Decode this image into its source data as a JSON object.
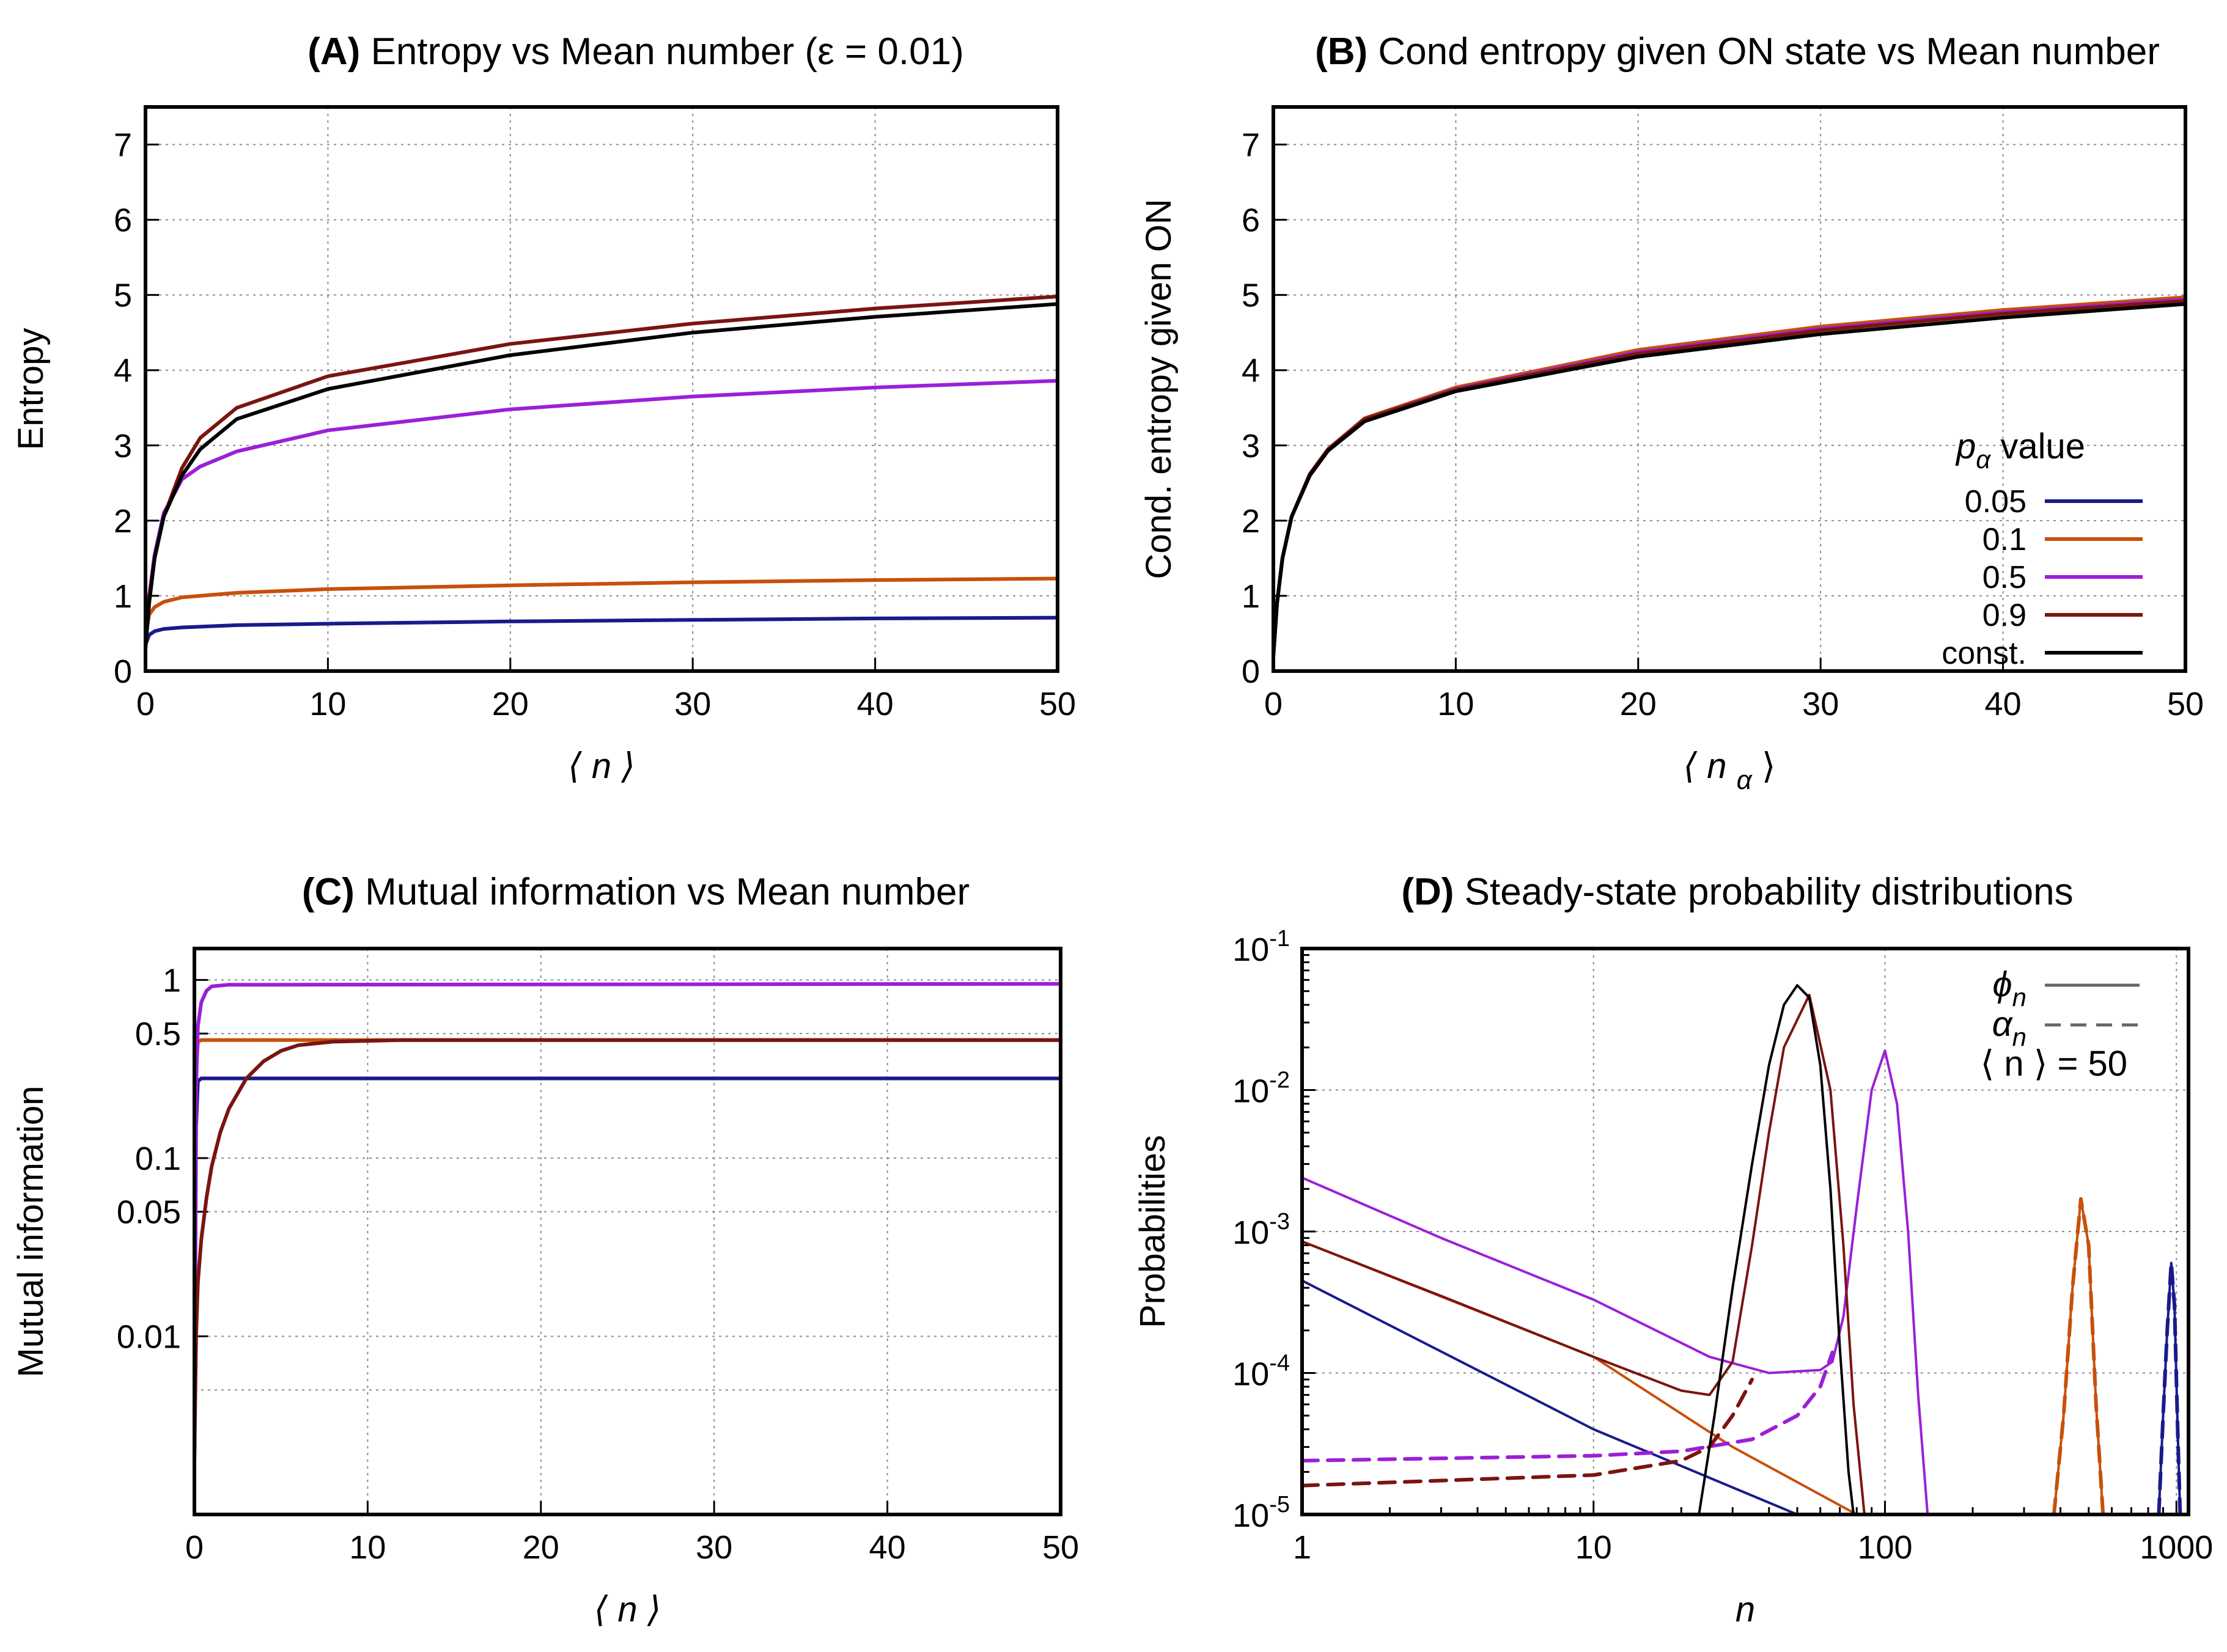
{
  "colors": {
    "0.05": "#1a1a8c",
    "0.1": "#c8500a",
    "0.5": "#9b1fd8",
    "0.9": "#7a1510",
    "const": "#000000"
  },
  "chart_data": [
    {
      "panel": "A",
      "type": "line",
      "title_letter": "(A)",
      "title_text": "Entropy vs Mean number (ε = 0.01)",
      "xlabel": "⟨ n ⟩",
      "ylabel": "Entropy",
      "xlim": [
        0,
        50
      ],
      "ylim": [
        0,
        7.5
      ],
      "xticks": [
        0,
        10,
        20,
        30,
        40,
        50
      ],
      "yticks": [
        0,
        1,
        2,
        3,
        4,
        5,
        6,
        7
      ],
      "grid": true,
      "series": [
        {
          "key": "0.05",
          "x": [
            0,
            0.2,
            0.5,
            1,
            2,
            3,
            5,
            10,
            20,
            30,
            40,
            50
          ],
          "y": [
            0.35,
            0.48,
            0.53,
            0.56,
            0.58,
            0.59,
            0.61,
            0.63,
            0.66,
            0.68,
            0.7,
            0.71
          ]
        },
        {
          "key": "0.1",
          "x": [
            0,
            0.2,
            0.5,
            1,
            2,
            3,
            5,
            10,
            20,
            30,
            40,
            50
          ],
          "y": [
            0.45,
            0.75,
            0.85,
            0.92,
            0.98,
            1.0,
            1.04,
            1.09,
            1.14,
            1.18,
            1.21,
            1.23
          ]
        },
        {
          "key": "0.5",
          "x": [
            0,
            0.2,
            0.5,
            1,
            2,
            3,
            5,
            10,
            20,
            30,
            40,
            50
          ],
          "y": [
            0.4,
            1.0,
            1.55,
            2.1,
            2.55,
            2.72,
            2.92,
            3.2,
            3.48,
            3.65,
            3.77,
            3.86
          ]
        },
        {
          "key": "0.9",
          "x": [
            0,
            0.2,
            0.5,
            1,
            2,
            3,
            5,
            10,
            20,
            30,
            40,
            50
          ],
          "y": [
            0.4,
            0.95,
            1.5,
            2.05,
            2.7,
            3.1,
            3.5,
            3.92,
            4.35,
            4.62,
            4.82,
            4.98
          ]
        },
        {
          "key": "const",
          "x": [
            0,
            0.2,
            0.5,
            1,
            2,
            3,
            5,
            10,
            20,
            30,
            40,
            50
          ],
          "y": [
            0.3,
            0.9,
            1.5,
            2.05,
            2.6,
            2.95,
            3.35,
            3.75,
            4.2,
            4.5,
            4.71,
            4.88
          ]
        }
      ]
    },
    {
      "panel": "B",
      "type": "line",
      "title_letter": "(B)",
      "title_text": "Cond entropy given ON state vs Mean number",
      "xlabel": "⟨ n",
      "xlabel_sub": "α",
      "xlabel_end": "⟩",
      "ylabel": "Cond. entropy given ON",
      "xlim": [
        0,
        50
      ],
      "ylim": [
        0,
        7.5
      ],
      "xticks": [
        0,
        10,
        20,
        30,
        40,
        50
      ],
      "yticks": [
        0,
        1,
        2,
        3,
        4,
        5,
        6,
        7
      ],
      "grid": true,
      "legend": {
        "position": "right",
        "title_sym": "p",
        "title_sub": "α",
        "title_text": " value",
        "entries": [
          {
            "key": "0.05",
            "label": "0.05"
          },
          {
            "key": "0.1",
            "label": "0.1"
          },
          {
            "key": "0.5",
            "label": "0.5"
          },
          {
            "key": "0.9",
            "label": "0.9"
          },
          {
            "key": "const",
            "label": "const."
          }
        ]
      },
      "series": [
        {
          "key": "0.05",
          "x": [
            0,
            0.2,
            0.5,
            1,
            2,
            3,
            5,
            10,
            20,
            30,
            40,
            50
          ],
          "y": [
            0.2,
            0.9,
            1.5,
            2.05,
            2.62,
            2.95,
            3.35,
            3.76,
            4.25,
            4.56,
            4.78,
            4.95
          ]
        },
        {
          "key": "0.1",
          "x": [
            0,
            0.2,
            0.5,
            1,
            2,
            3,
            5,
            10,
            20,
            30,
            40,
            50
          ],
          "y": [
            0.2,
            0.9,
            1.5,
            2.05,
            2.62,
            2.95,
            3.36,
            3.77,
            4.27,
            4.58,
            4.8,
            4.97
          ]
        },
        {
          "key": "0.5",
          "x": [
            0,
            0.2,
            0.5,
            1,
            2,
            3,
            5,
            10,
            20,
            30,
            40,
            50
          ],
          "y": [
            0.2,
            0.9,
            1.5,
            2.05,
            2.62,
            2.95,
            3.35,
            3.75,
            4.24,
            4.55,
            4.77,
            4.94
          ]
        },
        {
          "key": "0.9",
          "x": [
            0,
            0.2,
            0.5,
            1,
            2,
            3,
            5,
            10,
            20,
            30,
            40,
            50
          ],
          "y": [
            0.2,
            0.9,
            1.5,
            2.05,
            2.62,
            2.95,
            3.35,
            3.74,
            4.22,
            4.53,
            4.75,
            4.92
          ]
        },
        {
          "key": "const",
          "x": [
            0,
            0.2,
            0.5,
            1,
            2,
            3,
            5,
            10,
            20,
            30,
            40,
            50
          ],
          "y": [
            0.2,
            0.9,
            1.5,
            2.05,
            2.6,
            2.93,
            3.32,
            3.72,
            4.18,
            4.48,
            4.7,
            4.88
          ]
        }
      ]
    },
    {
      "panel": "C",
      "type": "line",
      "title_letter": "(C)",
      "title_text": "Mutual information vs Mean number",
      "xlabel": "⟨ n ⟩",
      "ylabel": "Mutual information",
      "xlim": [
        0,
        50
      ],
      "ylim": [
        0.001,
        1.5
      ],
      "yscale": "log",
      "xticks": [
        0,
        10,
        20,
        30,
        40,
        50
      ],
      "yticks": [
        0.01,
        0.05,
        0.1,
        0.5,
        1
      ],
      "ytick_labels": [
        "0.01",
        "0.05",
        "0.1",
        "0.5",
        "1"
      ],
      "ygrid": [
        0.005,
        0.01,
        0.05,
        0.1,
        0.5,
        1
      ],
      "grid": true,
      "series": [
        {
          "key": "0.05",
          "x": [
            0,
            0.1,
            0.2,
            0.4,
            1,
            5,
            50
          ],
          "y": [
            0.002,
            0.15,
            0.27,
            0.28,
            0.28,
            0.28,
            0.28
          ]
        },
        {
          "key": "0.1",
          "x": [
            0,
            0.1,
            0.2,
            0.4,
            1,
            5,
            50
          ],
          "y": [
            0.002,
            0.3,
            0.45,
            0.46,
            0.46,
            0.46,
            0.46
          ]
        },
        {
          "key": "0.5",
          "x": [
            0,
            0.1,
            0.2,
            0.4,
            0.7,
            1,
            2,
            3,
            5,
            50
          ],
          "y": [
            0.002,
            0.25,
            0.55,
            0.75,
            0.87,
            0.92,
            0.94,
            0.94,
            0.94,
            0.95
          ]
        },
        {
          "key": "0.9",
          "x": [
            0,
            0.1,
            0.2,
            0.4,
            0.7,
            1,
            1.5,
            2,
            3,
            4,
            5,
            6,
            8,
            12,
            50
          ],
          "y": [
            0.002,
            0.01,
            0.02,
            0.035,
            0.06,
            0.09,
            0.14,
            0.19,
            0.28,
            0.35,
            0.4,
            0.43,
            0.45,
            0.46,
            0.46
          ]
        }
      ]
    },
    {
      "panel": "D",
      "type": "line",
      "title_letter": "(D)",
      "title_text": "Steady-state probability distributions",
      "xlabel": "n",
      "ylabel": "Probabilities",
      "xscale": "log",
      "yscale": "log",
      "xlim": [
        1,
        1100
      ],
      "ylim": [
        1e-05,
        0.1
      ],
      "xticks": [
        1,
        10,
        100,
        1000
      ],
      "xtick_labels": [
        "1",
        "10",
        "100",
        "1000"
      ],
      "ytick_exponents": [
        "-5",
        "-4",
        "-3",
        "-2",
        "-1"
      ],
      "ytick_base": "10",
      "grid": true,
      "legend": {
        "position": "top-right",
        "entries": [
          {
            "sym": "ϕ",
            "sub": "n",
            "style": "solid"
          },
          {
            "sym": "α",
            "sub": "n",
            "style": "dashed"
          }
        ],
        "note": "⟨ n ⟩ = 50"
      },
      "series": [
        {
          "key": "0.05",
          "dash": false,
          "x": [
            1,
            10,
            50
          ],
          "y": [
            0.00045,
            4e-05,
            1e-05
          ]
        },
        {
          "key": "0.05",
          "dash": false,
          "x": [
            870,
            900,
            930,
            960,
            985,
            1010,
            1030
          ],
          "y": [
            1e-05,
            5e-05,
            0.0002,
            0.0006,
            0.0003,
            4e-05,
            1e-05
          ]
        },
        {
          "key": "0.05",
          "dash": true,
          "x": [
            870,
            900,
            930,
            960,
            985,
            1010,
            1030
          ],
          "y": [
            1e-05,
            5e-05,
            0.0002,
            0.0006,
            0.0003,
            4e-05,
            1e-05
          ]
        },
        {
          "key": "0.1",
          "dash": false,
          "x": [
            1,
            10,
            30,
            80
          ],
          "y": [
            0.00085,
            0.00013,
            3e-05,
            1e-05
          ]
        },
        {
          "key": "0.1",
          "dash": false,
          "x": [
            380,
            410,
            440,
            470,
            500,
            530,
            560
          ],
          "y": [
            1e-05,
            5e-05,
            0.0004,
            0.0017,
            0.0008,
            6e-05,
            1e-05
          ]
        },
        {
          "key": "0.1",
          "dash": true,
          "x": [
            380,
            410,
            440,
            470,
            500,
            530,
            560
          ],
          "y": [
            1e-05,
            5e-05,
            0.0004,
            0.0017,
            0.0008,
            6e-05,
            1e-05
          ]
        },
        {
          "key": "0.5",
          "dash": false,
          "x": [
            1,
            3,
            10,
            25,
            40,
            60,
            66,
            72,
            80,
            90,
            100,
            110,
            120,
            130,
            140
          ],
          "y": [
            0.0024,
            0.0009,
            0.00033,
            0.00013,
            0.0001,
            0.000105,
            0.00012,
            0.00025,
            0.0015,
            0.01,
            0.019,
            0.008,
            0.001,
            7e-05,
            1e-05
          ]
        },
        {
          "key": "0.5",
          "dash": true,
          "x": [
            1,
            10,
            20,
            35,
            50,
            60,
            66
          ],
          "y": [
            2.4e-05,
            2.6e-05,
            2.8e-05,
            3.4e-05,
            5e-05,
            8e-05,
            0.00014
          ]
        },
        {
          "key": "0.9",
          "dash": false,
          "x": [
            1,
            3,
            10,
            20,
            25,
            30,
            35,
            40,
            45,
            55,
            65,
            72,
            78,
            85
          ],
          "y": [
            0.00085,
            0.00035,
            0.00013,
            7.5e-05,
            7e-05,
            0.00012,
            0.0008,
            0.005,
            0.02,
            0.047,
            0.01,
            0.0008,
            6e-05,
            1e-05
          ]
        },
        {
          "key": "0.9",
          "dash": true,
          "x": [
            1,
            10,
            20,
            25,
            30,
            35
          ],
          "y": [
            1.6e-05,
            1.9e-05,
            2.4e-05,
            3e-05,
            5e-05,
            9e-05
          ]
        },
        {
          "key": "const",
          "dash": false,
          "x": [
            23,
            26,
            30,
            35,
            40,
            45,
            50,
            55,
            60,
            65,
            70,
            75,
            78
          ],
          "y": [
            1e-05,
            5e-05,
            0.0004,
            0.003,
            0.015,
            0.04,
            0.055,
            0.045,
            0.015,
            0.002,
            0.00015,
            2e-05,
            1e-05
          ]
        }
      ]
    }
  ]
}
